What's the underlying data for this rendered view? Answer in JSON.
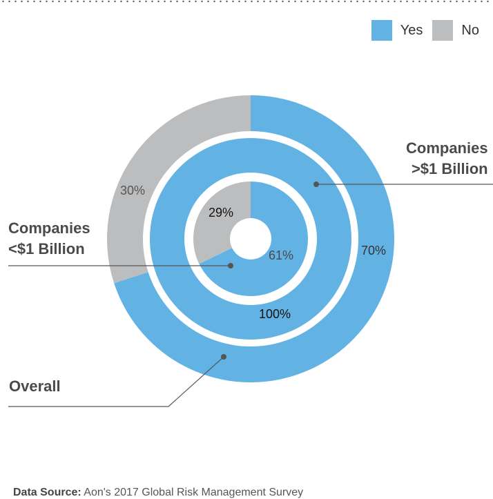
{
  "legend": {
    "yes_label": "Yes",
    "no_label": "No",
    "yes_color": "#62b3e3",
    "no_color": "#bcbdbf"
  },
  "chart_data": {
    "type": "pie",
    "variant": "nested donut",
    "series": [
      {
        "name": "Overall",
        "values": {
          "Yes": 70,
          "No": 30
        },
        "labels": {
          "Yes": "70%",
          "No": "30%"
        }
      },
      {
        "name": "Companies >$1 Billion",
        "values": {
          "Yes": 100,
          "No": 0
        },
        "labels": {
          "Yes": "100%"
        }
      },
      {
        "name": "Companies <$1 Billion",
        "values": {
          "Yes": 61,
          "No": 29
        },
        "labels": {
          "Yes": "61%",
          "No": "29%"
        }
      }
    ],
    "categories": [
      "Yes",
      "No"
    ],
    "legend_position": "top-right"
  },
  "callouts": {
    "large": [
      "Companies",
      ">$1 Billion"
    ],
    "small": [
      "Companies",
      "<$1 Billion"
    ],
    "overall": "Overall"
  },
  "source": {
    "label": "Data Source:",
    "text": "Aon's 2017 Global Risk Management Survey"
  }
}
